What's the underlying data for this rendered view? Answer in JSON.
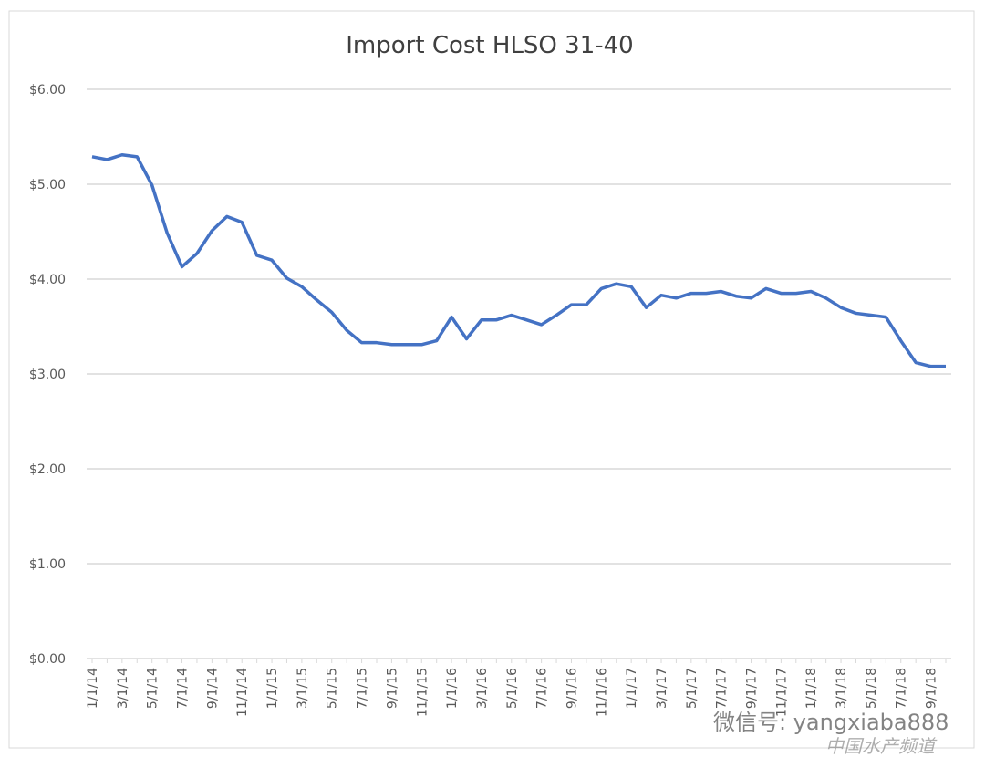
{
  "chart_data": {
    "type": "line",
    "title": "Import Cost HLSO 31-40",
    "categories": [
      "1/1/14",
      null,
      "3/1/14",
      null,
      "5/1/14",
      null,
      "7/1/14",
      null,
      "9/1/14",
      null,
      "11/1/14",
      null,
      "1/1/15",
      null,
      "3/1/15",
      null,
      "5/1/15",
      null,
      "7/1/15",
      null,
      "9/1/15",
      null,
      "11/1/15",
      null,
      "1/1/16",
      null,
      "3/1/16",
      null,
      "5/1/16",
      null,
      "7/1/16",
      null,
      "9/1/16",
      null,
      "11/1/16",
      null,
      "1/1/17",
      null,
      "3/1/17",
      null,
      "5/1/17",
      null,
      "7/1/17",
      null,
      "9/1/17",
      null,
      "11/1/17",
      null,
      "1/1/18",
      null,
      "3/1/18",
      null,
      "5/1/18",
      null,
      "7/1/18",
      null,
      "9/1/18",
      null
    ],
    "series": [
      {
        "name": "Import Cost HLSO 31-40",
        "color": "#4472c4",
        "values": [
          5.29,
          5.26,
          5.31,
          5.29,
          4.99,
          4.49,
          4.13,
          4.27,
          4.51,
          4.66,
          4.6,
          4.25,
          4.2,
          4.01,
          3.92,
          3.78,
          3.65,
          3.46,
          3.33,
          3.33,
          3.31,
          3.31,
          3.31,
          3.35,
          3.6,
          3.37,
          3.57,
          3.57,
          3.62,
          3.57,
          3.52,
          3.62,
          3.73,
          3.73,
          3.9,
          3.95,
          3.92,
          3.7,
          3.83,
          3.8,
          3.85,
          3.85,
          3.87,
          3.82,
          3.8,
          3.9,
          3.85,
          3.85,
          3.87,
          3.8,
          3.7,
          3.64,
          3.62,
          3.6,
          3.35,
          3.12,
          3.08,
          3.08
        ]
      }
    ],
    "ylim": [
      0,
      6
    ],
    "yticks": [
      {
        "value": 0,
        "label": "$0.00"
      },
      {
        "value": 1,
        "label": "$1.00"
      },
      {
        "value": 2,
        "label": "$2.00"
      },
      {
        "value": 3,
        "label": "$3.00"
      },
      {
        "value": 4,
        "label": "$4.00"
      },
      {
        "value": 5,
        "label": "$5.00"
      },
      {
        "value": 6,
        "label": "$6.00"
      }
    ],
    "grid": true
  },
  "watermark": [
    "微信号: yangxiaba888",
    "中国水产频道"
  ]
}
